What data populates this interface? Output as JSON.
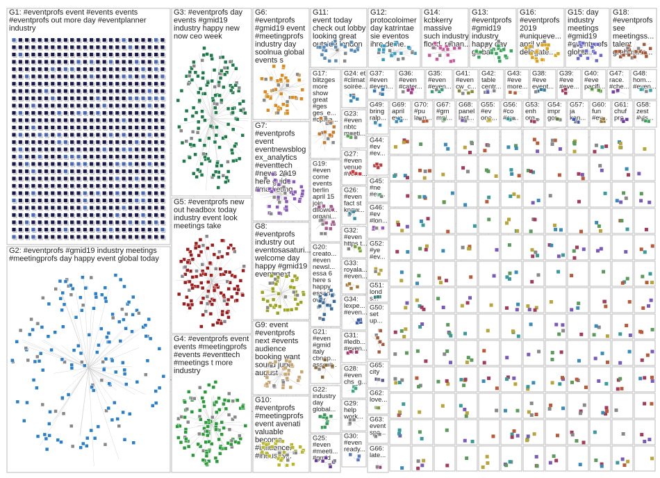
{
  "groups": [
    {
      "label": [
        "G1: #eventprofs event #events events",
        "#eventprofs out more day #eventplanner",
        "industry"
      ]
    },
    {
      "label": [
        "G2: #eventprofs #gmid19 industry meetings",
        "#meetingprofs day happy event global today"
      ]
    },
    {
      "label": [
        "G3: #eventprofs day",
        "events #gmid19",
        "industry happy new",
        "now ceo week"
      ]
    },
    {
      "label": [
        "G5: #eventprofs new",
        "out headbox today",
        "industry event look",
        "meetings take"
      ]
    },
    {
      "label": [
        "G4: #eventprofs event",
        "events #meetingprofs",
        "#events #eventtech",
        "#meetings t more",
        "industry"
      ]
    },
    {
      "label": [
        "G6:",
        "#eventprofs",
        "#gmid19 event",
        "#meetingprofs",
        "industry day",
        "soolnua global",
        "events s"
      ]
    },
    {
      "label": [
        "G7:",
        "#eventprofs",
        "event",
        "eventnewsblog",
        "ex_analytics",
        "#eventtech",
        "#news 2019",
        "here guide",
        "#marketing"
      ]
    },
    {
      "label": [
        "G8:",
        "#eventprofs",
        "industry out",
        "eventosasaturi...",
        "welcome day",
        "happy #gmid19",
        "event next"
      ]
    },
    {
      "label": [
        "G9: event",
        "#eventprofs",
        "next #events",
        "audience",
        "booking want",
        "sound june",
        "august"
      ]
    },
    {
      "label": [
        "G10:",
        "#eventprofs",
        "#meetingprofs",
        "event avenati",
        "valuable",
        "become",
        "#influencer",
        "#industry..."
      ]
    },
    {
      "label": [
        "G11:",
        "event today",
        "check out lobby",
        "looking great",
        "outside london"
      ]
    },
    {
      "label": [
        "G12:",
        "protocoloimer",
        "day katrintae",
        "sie eventos",
        "ihre deine..."
      ]
    },
    {
      "label": [
        "G14:",
        "kcbkerry",
        "massive",
        "such industry",
        "flood_ronan..."
      ]
    },
    {
      "label": [
        "G13:",
        "#eventprofs",
        "#gmid19",
        "industry",
        "happy day",
        "global..."
      ]
    },
    {
      "label": [
        "G16:",
        "#eventprofs",
        "2019",
        "#uniqueve...",
        "april vat",
        "delegate..."
      ]
    },
    {
      "label": [
        "G15: day",
        "industry",
        "meetings",
        "#gmid19",
        "#eventprofs",
        "global..."
      ]
    },
    {
      "label": [
        "G18:",
        "#eventprofs",
        "see",
        "meetingss...",
        "talent",
        "grebusine..."
      ]
    },
    {
      "label": [
        "G17:",
        "blitzges",
        "more",
        "show",
        "great",
        "#ges",
        "ges_e...",
        "#cpma..."
      ]
    },
    {
      "label": [
        "G24: et",
        "#climat",
        "soirée..."
      ]
    },
    {
      "label": [
        "G23:",
        "#even",
        "nbtc",
        "meeti..."
      ]
    },
    {
      "label": [
        "G37:",
        "#even",
        "#even..."
      ]
    },
    {
      "label": [
        "G36:",
        "#even",
        "#cater..."
      ]
    },
    {
      "label": [
        "G35:",
        "#even",
        "#even..."
      ]
    },
    {
      "label": [
        "G41:",
        "#even",
        "cw_c..."
      ]
    },
    {
      "label": [
        "G42:",
        "table",
        "centr..."
      ]
    },
    {
      "label": [
        "G43:",
        "#eve",
        "more..."
      ]
    },
    {
      "label": [
        "G38:",
        "#eve",
        "event..."
      ]
    },
    {
      "label": [
        "G39:",
        "#eve",
        "#eve..."
      ]
    },
    {
      "label": [
        "G40:",
        "#eve",
        "pacifi..."
      ]
    },
    {
      "label": [
        "G47:",
        "race.",
        "#che..."
      ]
    },
    {
      "label": [
        "G48:",
        "hom...",
        "#even..."
      ]
    },
    {
      "label": [
        "G19:",
        "#even",
        "come",
        "events",
        "berlin",
        "april 15",
        "join",
        "dflowe...",
        "organi..."
      ]
    },
    {
      "label": [
        "G20:",
        "creato...",
        "#even",
        "newsl...",
        "essa 6",
        "here s",
        "happy",
        "essan...",
        "over"
      ]
    },
    {
      "label": [
        "G21:",
        "#even",
        "#gmid",
        "italy",
        "cbnap...",
        "associ..."
      ]
    },
    {
      "label": [
        "G22:",
        "industry",
        "day",
        "global..."
      ]
    },
    {
      "label": [
        "G25:",
        "#even",
        "#meeti...",
        "#gmid"
      ]
    },
    {
      "label": [
        "G27:",
        "#even",
        "venue",
        "#venu..."
      ]
    },
    {
      "label": [
        "G26:",
        "#even",
        "fact st",
        "know..."
      ]
    },
    {
      "label": [
        "G32:",
        "#even",
        "https t..."
      ]
    },
    {
      "label": [
        "G33:",
        "royala...",
        "#even..."
      ]
    },
    {
      "label": [
        "G34:",
        "lexpe...",
        "#even..."
      ]
    },
    {
      "label": [
        "G31:",
        "#ledb...",
        "#even..."
      ]
    },
    {
      "label": [
        "G28:",
        "#even",
        "chs_g..."
      ]
    },
    {
      "label": [
        "G29:",
        "help",
        "work..."
      ]
    },
    {
      "label": [
        "G30:",
        "#even",
        "ready..."
      ]
    },
    {
      "label": [
        "G49:",
        "bring",
        "ralp..."
      ]
    },
    {
      "label": [
        "G44:",
        "#ev",
        "#ev..."
      ]
    },
    {
      "label": [
        "G45:",
        "#ne",
        "#ev..."
      ]
    },
    {
      "label": [
        "G46:",
        "#ev",
        "#lon..."
      ]
    },
    {
      "label": [
        "G52:",
        "#ye",
        "#ev..."
      ]
    },
    {
      "label": [
        "G51:",
        "lond",
        "s..."
      ]
    },
    {
      "label": [
        "G50:",
        "set",
        "up..."
      ]
    },
    {
      "label": [
        "G65:",
        "city"
      ]
    },
    {
      "label": [
        "G62:",
        "love..."
      ]
    },
    {
      "label": [
        "G63:",
        "event",
        "spa..."
      ]
    },
    {
      "label": [
        "G66:",
        "late..."
      ]
    },
    {
      "label": [
        "G69:",
        "april",
        "eve..."
      ]
    },
    {
      "label": [
        "G70:",
        "#pu",
        "laun..."
      ]
    },
    {
      "label": [
        "G67:",
        "#gm",
        "mpi..."
      ]
    },
    {
      "label": [
        "G68:",
        "panel",
        "last..."
      ]
    },
    {
      "label": [
        "G55:",
        "#ev",
        "one..."
      ]
    },
    {
      "label": [
        "G56:",
        "#co",
        "#ev..."
      ]
    },
    {
      "label": [
        "G53:",
        "enh",
        "org..."
      ]
    },
    {
      "label": [
        "G54:",
        "impr",
        "gor..."
      ]
    },
    {
      "label": [
        "G57:",
        "ja",
        "kan..."
      ]
    },
    {
      "label": [
        "G60:",
        "fun",
        "#ev..."
      ]
    },
    {
      "label": [
        "G61:",
        "chuf",
        "pro..."
      ]
    },
    {
      "label": [
        "G58:",
        "zest",
        "#vis..."
      ]
    },
    {
      "label": [
        "G59:",
        "#ev",
        "para..."
      ]
    }
  ]
}
